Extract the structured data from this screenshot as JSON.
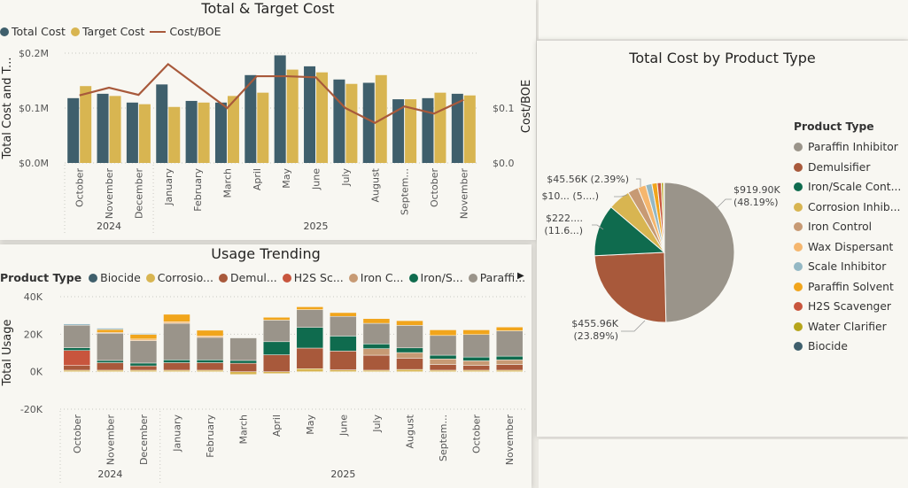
{
  "cost_chart": {
    "title": "Total & Target Cost",
    "legend": [
      {
        "label": "Total Cost",
        "color": "#3f5f6c",
        "kind": "dot"
      },
      {
        "label": "Target Cost",
        "color": "#d8b551",
        "kind": "dot"
      },
      {
        "label": "Cost/BOE",
        "color": "#a8593b",
        "kind": "line"
      }
    ],
    "y_left_title": "Total Cost and T...",
    "y_right_title": "Cost/BOE",
    "y_left_ticks": [
      "$0.0M",
      "$0.1M",
      "$0.2M"
    ],
    "y_right_ticks": [
      "$0.0",
      "$0.1"
    ],
    "year_labels": [
      "2024",
      "2025"
    ]
  },
  "usage_chart": {
    "title": "Usage Trending",
    "legend_title": "Product Type",
    "legend": [
      {
        "label": "Biocide",
        "color": "#3f5f6c"
      },
      {
        "label": "Corrosio...",
        "color": "#d8b551"
      },
      {
        "label": "Demul...",
        "color": "#a8593b"
      },
      {
        "label": "H2S Sc...",
        "color": "#c8553d"
      },
      {
        "label": "Iron C...",
        "color": "#c79a74"
      },
      {
        "label": "Iron/S...",
        "color": "#0f6b4e"
      },
      {
        "label": "Paraffi...",
        "color": "#9a948a"
      }
    ],
    "y_title": "Total Usage",
    "y_ticks": [
      "40K",
      "20K",
      "0K",
      "-20K"
    ],
    "year_labels": [
      "2024",
      "2025"
    ],
    "scroll_arrow": "▶"
  },
  "pie_chart": {
    "title": "Total Cost by Product Type",
    "legend_title": "Product Type",
    "legend": [
      {
        "label": "Paraffin Inhibitor",
        "color": "#9a948a"
      },
      {
        "label": "Demulsifier",
        "color": "#a8593b"
      },
      {
        "label": "Iron/Scale Cont...",
        "color": "#0f6b4e"
      },
      {
        "label": "Corrosion Inhib...",
        "color": "#d8b551"
      },
      {
        "label": "Iron Control",
        "color": "#c79a74"
      },
      {
        "label": "Wax Dispersant",
        "color": "#f5b66e"
      },
      {
        "label": "Scale Inhibitor",
        "color": "#94b8c4"
      },
      {
        "label": "Paraffin Solvent",
        "color": "#f1a51c"
      },
      {
        "label": "H2S Scavenger",
        "color": "#c8553d"
      },
      {
        "label": "Water Clarifier",
        "color": "#b6a51b"
      },
      {
        "label": "Biocide",
        "color": "#3f5f6c"
      }
    ],
    "data_labels": [
      {
        "line1": "$919.90K",
        "line2": "(48.19%)"
      },
      {
        "line1": "$455.96K",
        "line2": "(23.89%)"
      },
      {
        "line1": "$222....",
        "line2": "(11.6...)"
      },
      {
        "line1": "$10... (5....)",
        "line2": ""
      },
      {
        "line1": "$45.56K (2.39%)",
        "line2": ""
      }
    ]
  },
  "chart_data": [
    {
      "type": "bar",
      "title": "Total & Target Cost",
      "categories": [
        "October",
        "November",
        "December",
        "January",
        "February",
        "March",
        "April",
        "May",
        "June",
        "July",
        "August",
        "Septem...",
        "October",
        "November"
      ],
      "years": [
        {
          "label": "2024",
          "count": 3
        },
        {
          "label": "2025",
          "count": 11
        }
      ],
      "series": [
        {
          "name": "Total Cost",
          "kind": "bar",
          "color": "#3f5f6c",
          "values": [
            0.118,
            0.126,
            0.11,
            0.143,
            0.113,
            0.11,
            0.16,
            0.196,
            0.176,
            0.152,
            0.146,
            0.116,
            0.118,
            0.126
          ]
        },
        {
          "name": "Target Cost",
          "kind": "bar",
          "color": "#d8b551",
          "values": [
            0.14,
            0.122,
            0.107,
            0.102,
            0.11,
            0.122,
            0.128,
            0.17,
            0.165,
            0.144,
            0.16,
            0.116,
            0.128,
            0.123
          ]
        },
        {
          "name": "Cost/BOE",
          "kind": "line",
          "axis": "right",
          "color": "#a8593b",
          "values": [
            0.123,
            0.137,
            0.124,
            0.18,
            0.14,
            0.1,
            0.158,
            0.158,
            0.156,
            0.1,
            0.073,
            0.103,
            0.09,
            0.115
          ]
        }
      ],
      "ylim_left": [
        0,
        0.2
      ],
      "ylim_right": [
        0,
        0.2
      ],
      "ylabel": "Total Cost and T...",
      "ylabel_right": "Cost/BOE",
      "grid": true
    },
    {
      "type": "bar",
      "stacked": true,
      "title": "Usage Trending",
      "categories": [
        "October",
        "November",
        "December",
        "January",
        "February",
        "March",
        "April",
        "May",
        "June",
        "July",
        "August",
        "Septem...",
        "October",
        "November"
      ],
      "years": [
        {
          "label": "2024",
          "count": 3
        },
        {
          "label": "2025",
          "count": 11
        }
      ],
      "series": [
        {
          "name": "Corrosion Inhibitor",
          "color": "#d8b551",
          "values": [
            800,
            800,
            800,
            800,
            800,
            -1500,
            -1000,
            1600,
            1000,
            800,
            1200,
            800,
            800,
            800
          ]
        },
        {
          "name": "Demulsifier",
          "color": "#a8593b",
          "values": [
            2500,
            4000,
            2300,
            4000,
            4000,
            4500,
            9000,
            11000,
            10000,
            8000,
            6000,
            3000,
            2500,
            3000
          ]
        },
        {
          "name": "H2S Scavenger",
          "color": "#c8553d",
          "values": [
            8000,
            0,
            0,
            0,
            0,
            0,
            0,
            0,
            0,
            0,
            0,
            0,
            0,
            0
          ]
        },
        {
          "name": "Iron Control",
          "color": "#c79a74",
          "values": [
            0,
            0,
            0,
            0,
            0,
            0,
            0,
            0,
            0,
            3500,
            3000,
            3000,
            2500,
            2500
          ]
        },
        {
          "name": "Iron/Scale Control",
          "color": "#0f6b4e",
          "values": [
            1500,
            1200,
            1500,
            1500,
            1500,
            1500,
            7000,
            11000,
            8000,
            2500,
            2500,
            2000,
            2000,
            2000
          ]
        },
        {
          "name": "Paraffin Inhibitor",
          "color": "#9a948a",
          "values": [
            12000,
            14500,
            12000,
            19500,
            12000,
            12000,
            11500,
            9500,
            10500,
            11000,
            12000,
            10500,
            12000,
            13500
          ]
        },
        {
          "name": "Wax Dispersant",
          "color": "#f5b66e",
          "values": [
            0,
            500,
            800,
            800,
            800,
            0,
            0,
            0,
            0,
            0,
            0,
            0,
            0,
            0
          ]
        },
        {
          "name": "Paraffin Solvent",
          "color": "#f1a51c",
          "values": [
            0,
            1500,
            2500,
            4000,
            3000,
            0,
            1500,
            1500,
            2000,
            2500,
            2500,
            3000,
            2500,
            2000
          ]
        },
        {
          "name": "Scale Inhibitor",
          "color": "#94b8c4",
          "values": [
            700,
            700,
            500,
            0,
            0,
            0,
            0,
            0,
            0,
            0,
            0,
            0,
            0,
            0
          ]
        }
      ],
      "ylim": [
        -20000,
        40000
      ],
      "ylabel": "Total Usage",
      "grid": true
    },
    {
      "type": "pie",
      "title": "Total Cost by Product Type",
      "labels": [
        "Paraffin Inhibitor",
        "Demulsifier",
        "Iron/Scale Control",
        "Corrosion Inhibitor",
        "Iron Control",
        "Wax Dispersant",
        "Scale Inhibitor",
        "Paraffin Solvent",
        "H2S Scavenger",
        "Water Clarifier",
        "Biocide"
      ],
      "percentages": [
        48.19,
        23.89,
        11.6,
        5.0,
        2.39,
        1.8,
        1.4,
        1.2,
        0.9,
        0.5,
        0.2
      ],
      "values": [
        "$919.90K",
        "$455.96K",
        "$222...",
        "$10...",
        "$45.56K",
        "",
        "",
        "",
        "",
        "",
        ""
      ],
      "legend_position": "right"
    }
  ]
}
